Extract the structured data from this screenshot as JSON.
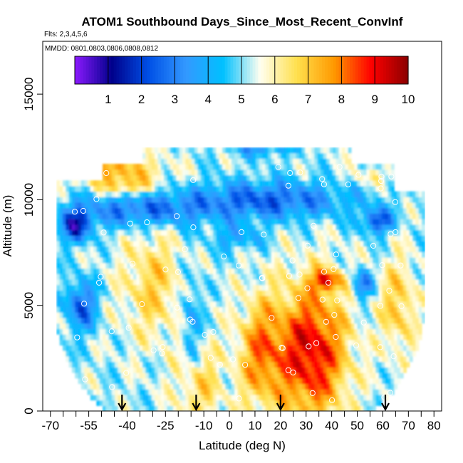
{
  "chart_data": {
    "type": "heatmap",
    "title": "ATOM1 Southbound Days_Since_Most_Recent_ConvInf",
    "flights_label": "Flts: 2,3,4,5,6",
    "dates_label": "MMDD: 0801,0803,0806,0808,0812",
    "xlabel": "Latitude (deg N)",
    "ylabel": "Altitude (m)",
    "xlim": [
      -73,
      83
    ],
    "ylim": [
      0,
      17500
    ],
    "x_ticks": [
      -70,
      -55,
      -40,
      -25,
      -10,
      0,
      10,
      20,
      30,
      40,
      50,
      60,
      70,
      80
    ],
    "x_tick_labels": [
      "-70",
      "-55",
      "-40",
      "-25",
      "-10",
      "0",
      "10",
      "20",
      "30",
      "40",
      "50",
      "60",
      "70",
      "80"
    ],
    "x_minor_ticks": [
      -65,
      -60,
      -50,
      -45,
      -35,
      -30,
      -20,
      -15,
      -5,
      5,
      15,
      25,
      35,
      45,
      55,
      65,
      75
    ],
    "y_ticks": [
      0,
      5000,
      10000,
      15000
    ],
    "y_tick_labels": [
      "0",
      "5000",
      "10000",
      "15000"
    ],
    "colorbar": {
      "min": 0,
      "max": 10,
      "ticks": [
        1,
        2,
        3,
        4,
        5,
        6,
        7,
        8,
        9,
        10
      ],
      "tick_labels": [
        "1",
        "2",
        "3",
        "4",
        "5",
        "6",
        "7",
        "8",
        "9",
        "10"
      ],
      "colors": [
        "#8c1aff",
        "#00008b",
        "#0050e6",
        "#3399ff",
        "#00c0ff",
        "#fffff0",
        "#ffe04d",
        "#ff9900",
        "#ff0000",
        "#8b0000"
      ]
    },
    "profile_arrows_lat": [
      -42,
      -13,
      20,
      61
    ],
    "grid": false,
    "legend": "colorbar top"
  }
}
